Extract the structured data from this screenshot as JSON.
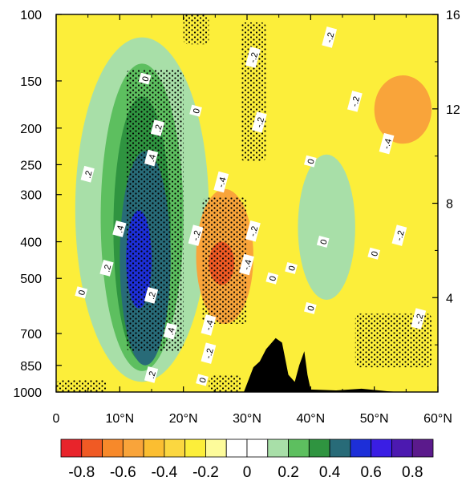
{
  "chart_data": {
    "type": "heatmap",
    "title": "",
    "xlabel": "",
    "ylabel": "",
    "x_axis": {
      "range": [
        0,
        60
      ],
      "ticks": [
        0,
        10,
        20,
        30,
        40,
        50,
        60
      ],
      "tick_labels": [
        "0",
        "10°N",
        "20°N",
        "30°N",
        "40°N",
        "50°N",
        "60°N"
      ]
    },
    "y_axis_left": {
      "scale": "log-pressure",
      "range": [
        1000,
        100
      ],
      "ticks": [
        100,
        150,
        200,
        250,
        300,
        400,
        500,
        700,
        850,
        1000
      ],
      "tick_labels": [
        "100",
        "150",
        "200",
        "250",
        "300",
        "400",
        "500",
        "700",
        "850",
        "1000"
      ]
    },
    "y_axis_right": {
      "ticks": [
        4,
        8,
        12,
        16
      ],
      "tick_labels": [
        "4",
        "8",
        "12",
        "16"
      ]
    },
    "colorbar": {
      "levels": [
        -0.8,
        -0.7,
        -0.6,
        -0.5,
        -0.4,
        -0.3,
        -0.2,
        -0.1,
        0,
        0.1,
        0.2,
        0.3,
        0.4,
        0.5,
        0.6,
        0.7,
        0.8
      ],
      "colors": [
        "#e8242b",
        "#f05a24",
        "#f7892a",
        "#f9a43a",
        "#fbbe31",
        "#fbd740",
        "#fcee3a",
        "#fdfb9b",
        "#ffffff",
        "#ffffff",
        "#a8dfa8",
        "#5dbf5f",
        "#2f9440",
        "#286b78",
        "#1d2fd8",
        "#3a1ee4",
        "#4c19b0",
        "#5b1a8c"
      ],
      "tick_values": [
        -0.8,
        -0.6,
        -0.4,
        -0.2,
        0,
        0.2,
        0.4,
        0.6,
        0.8
      ],
      "tick_labels": [
        "-0.8",
        "-0.6",
        "-0.4",
        "-0.2",
        "0",
        "0.2",
        "0.4",
        "0.6",
        "0.8"
      ]
    },
    "background_color": "#fcee3a",
    "features": [
      {
        "kind": "positive-anomaly",
        "color": "#a8dfa8",
        "lat_range": [
          3,
          24
        ],
        "p_range": [
          940,
          115
        ]
      },
      {
        "kind": "positive-anomaly",
        "color": "#5dbf5f",
        "lat_range": [
          7,
          20
        ],
        "p_range": [
          880,
          135
        ]
      },
      {
        "kind": "positive-anomaly",
        "color": "#2f9440",
        "lat_range": [
          9,
          18
        ],
        "p_range": [
          830,
          165
        ]
      },
      {
        "kind": "positive-anomaly",
        "color": "#286b78",
        "lat_range": [
          10,
          18
        ],
        "p_range": [
          850,
          230
        ]
      },
      {
        "kind": "positive-anomaly",
        "color": "#1d2fd8",
        "lat_range": [
          11,
          15
        ],
        "p_range": [
          600,
          330
        ]
      },
      {
        "kind": "negative-anomaly",
        "color": "#f9a43a",
        "lat_range": [
          22,
          31
        ],
        "p_range": [
          660,
          290
        ]
      },
      {
        "kind": "negative-anomaly",
        "color": "#f05a24",
        "lat_range": [
          24,
          28
        ],
        "p_range": [
          520,
          400
        ]
      },
      {
        "kind": "positive-anomaly",
        "color": "#a8dfa8",
        "lat_range": [
          38,
          47
        ],
        "p_range": [
          570,
          235
        ]
      },
      {
        "kind": "negative-anomaly",
        "color": "#f9a43a",
        "lat_range": [
          50,
          59
        ],
        "p_range": [
          220,
          145
        ]
      }
    ],
    "contour_labels": [
      {
        "text": "0",
        "lat": 14,
        "p": 148
      },
      {
        "text": "0",
        "lat": 22,
        "p": 180
      },
      {
        "text": "0",
        "lat": 4,
        "p": 545
      },
      {
        "text": "0",
        "lat": 34,
        "p": 500
      },
      {
        "text": "0",
        "lat": 37,
        "p": 470
      },
      {
        "text": "0",
        "lat": 40,
        "p": 600
      },
      {
        "text": "0",
        "lat": 42,
        "p": 400
      },
      {
        "text": "0",
        "lat": 50,
        "p": 430
      },
      {
        "text": "0",
        "lat": 40,
        "p": 245
      },
      {
        "text": "0",
        "lat": 23,
        "p": 930
      },
      {
        "text": ".2",
        "lat": 5,
        "p": 265
      },
      {
        "text": ".2",
        "lat": 8,
        "p": 470
      },
      {
        "text": ".2",
        "lat": 16,
        "p": 200
      },
      {
        "text": ".2",
        "lat": 15,
        "p": 555
      },
      {
        "text": ".4",
        "lat": 15,
        "p": 240
      },
      {
        "text": ".4",
        "lat": 10,
        "p": 370
      },
      {
        "text": ".4",
        "lat": 18,
        "p": 690
      },
      {
        "text": ".2",
        "lat": 15,
        "p": 900
      },
      {
        "text": "-.4",
        "lat": 26,
        "p": 278
      },
      {
        "text": "-.4",
        "lat": 30,
        "p": 460
      },
      {
        "text": "-.4",
        "lat": 24,
        "p": 665
      },
      {
        "text": "-.2",
        "lat": 22,
        "p": 385
      },
      {
        "text": "-.2",
        "lat": 31,
        "p": 375
      },
      {
        "text": "-.2",
        "lat": 31,
        "p": 130
      },
      {
        "text": "-.2",
        "lat": 32,
        "p": 193
      },
      {
        "text": "-.2",
        "lat": 24,
        "p": 790
      },
      {
        "text": "-.2",
        "lat": 43,
        "p": 115
      },
      {
        "text": "-.2",
        "lat": 47,
        "p": 170
      },
      {
        "text": "-.4",
        "lat": 52,
        "p": 220
      },
      {
        "text": "-.2",
        "lat": 54,
        "p": 385
      },
      {
        "text": "-.2",
        "lat": 57,
        "p": 640
      }
    ],
    "stippled_regions": [
      {
        "lat_range": [
          11,
          20
        ],
        "p_range": [
          780,
          140
        ]
      },
      {
        "lat_range": [
          23,
          30
        ],
        "p_range": [
          660,
          305
        ]
      },
      {
        "lat_range": [
          29,
          33
        ],
        "p_range": [
          245,
          105
        ]
      },
      {
        "lat_range": [
          20,
          24
        ],
        "p_range": [
          120,
          100
        ]
      },
      {
        "lat_range": [
          47,
          59
        ],
        "p_range": [
          860,
          620
        ]
      },
      {
        "lat_range": [
          0,
          8
        ],
        "p_range": [
          1000,
          930
        ]
      },
      {
        "lat_range": [
          24,
          29
        ],
        "p_range": [
          1000,
          900
        ]
      }
    ],
    "terrain": {
      "color": "#000000",
      "profile": [
        {
          "lat": 29.5,
          "p": 1000
        },
        {
          "lat": 31,
          "p": 860
        },
        {
          "lat": 32,
          "p": 830
        },
        {
          "lat": 33,
          "p": 770
        },
        {
          "lat": 34.5,
          "p": 720
        },
        {
          "lat": 35.5,
          "p": 740
        },
        {
          "lat": 36.5,
          "p": 900
        },
        {
          "lat": 37.5,
          "p": 940
        },
        {
          "lat": 38.2,
          "p": 850
        },
        {
          "lat": 39,
          "p": 780
        },
        {
          "lat": 39.5,
          "p": 900
        },
        {
          "lat": 40,
          "p": 985
        },
        {
          "lat": 44,
          "p": 990
        },
        {
          "lat": 48,
          "p": 980
        },
        {
          "lat": 52,
          "p": 995
        },
        {
          "lat": 54,
          "p": 1000
        }
      ]
    }
  }
}
